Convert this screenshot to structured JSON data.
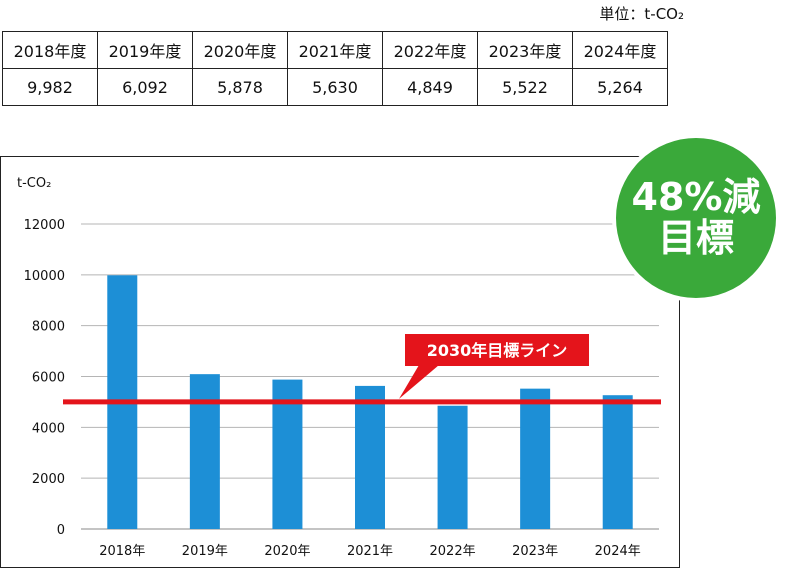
{
  "unit_label": "単位：t-CO₂",
  "table": {
    "headers": [
      "2018年度",
      "2019年度",
      "2020年度",
      "2021年度",
      "2022年度",
      "2023年度",
      "2024年度"
    ],
    "values": [
      "9,982",
      "6,092",
      "5,878",
      "5,630",
      "4,849",
      "5,522",
      "5,264"
    ]
  },
  "badge": {
    "line1": "48%減",
    "line2": "目標"
  },
  "colors": {
    "bar": "#1d8fd6",
    "target_line": "#e4141b",
    "badge": "#3aa93a",
    "grid": "#b5b5b5"
  },
  "chart_data": {
    "type": "bar",
    "title": "",
    "ylabel": "t-CO₂",
    "xlabel": "",
    "categories": [
      "2018年",
      "2019年",
      "2020年",
      "2021年",
      "2022年",
      "2023年",
      "2024年"
    ],
    "values": [
      9982,
      6092,
      5878,
      5630,
      4849,
      5522,
      5264
    ],
    "ylim": [
      0,
      12000
    ],
    "yticks": [
      0,
      2000,
      4000,
      6000,
      8000,
      10000,
      12000
    ],
    "grid": true,
    "target_line": {
      "value": 5000,
      "label": "2030年目標ライン"
    }
  }
}
